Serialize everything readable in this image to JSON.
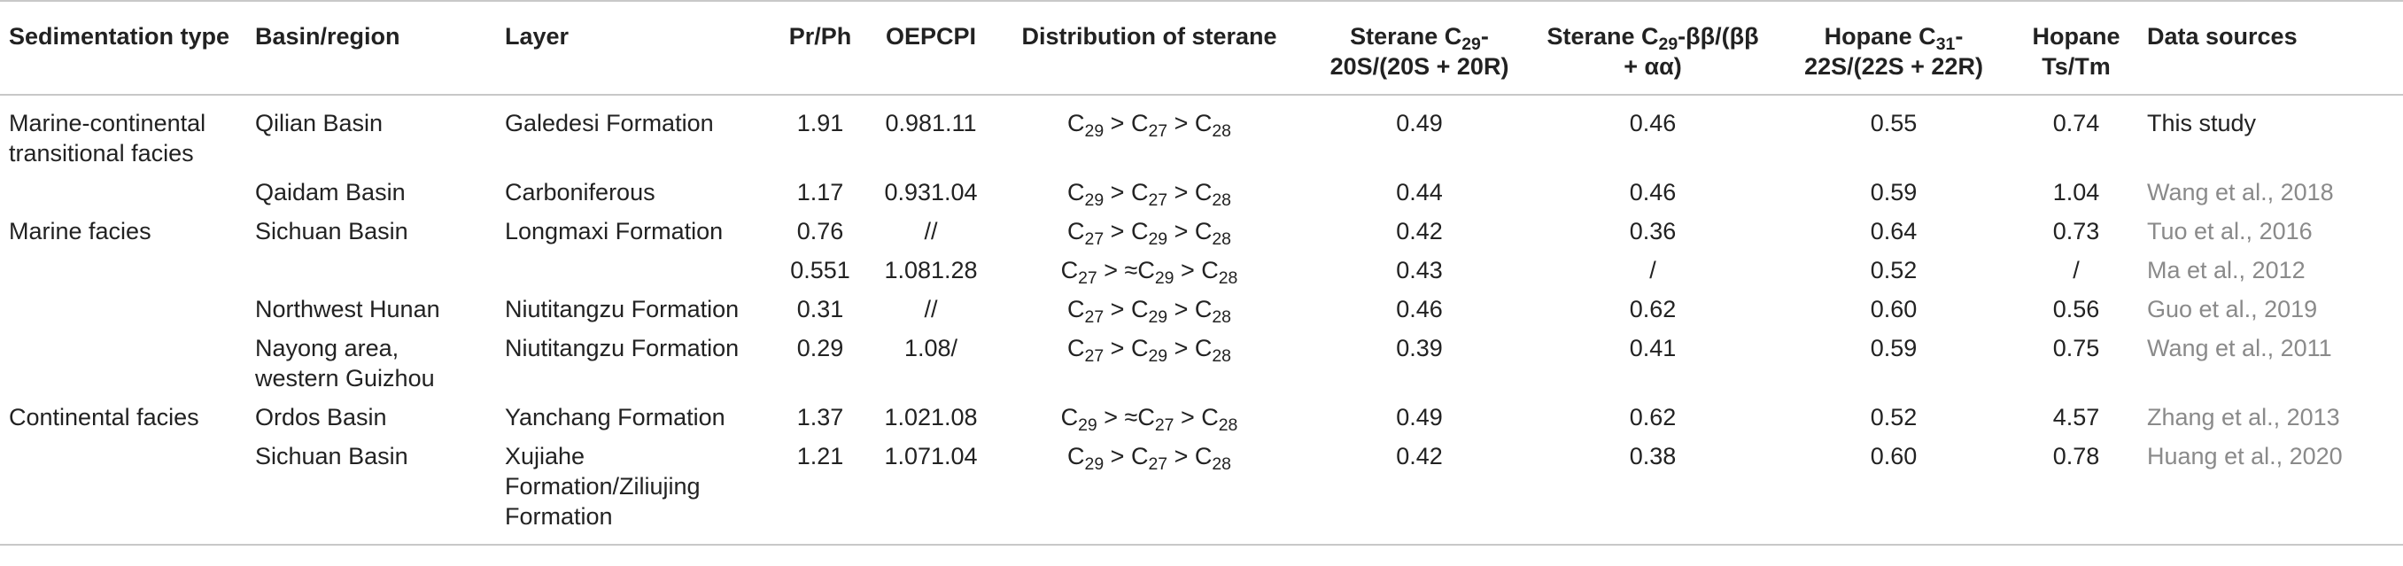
{
  "table": {
    "headers": {
      "sedimentation_type": "Sedimentation type",
      "basin_region": "Basin/region",
      "layer": "Layer",
      "pr_ph": "Pr/Ph",
      "oepcpi": "OEPCPI",
      "distribution": "Distribution of sterane",
      "sterane_20s": {
        "pre": "Sterane C",
        "sub": "29",
        "post": "-20S/(20S + 20R)"
      },
      "sterane_bb": {
        "pre": "Sterane C",
        "sub": "29",
        "post": "-ββ/(ββ + αα)"
      },
      "hopane_22s": {
        "pre": "Hopane C",
        "sub": "31",
        "post": "-22S/(22S + 22R)"
      },
      "hopane_ts": "Hopane Ts/Tm",
      "data_sources": "Data sources"
    },
    "rows": [
      {
        "sedimentation_type": "Marine-continental transitional facies",
        "basin_region": "Qilian Basin",
        "layer": "Galedesi Formation",
        "pr_ph": "1.91",
        "oepcpi": "0.981.11",
        "distribution": {
          "a": "C",
          "as": "29",
          "op1": " > ",
          "b": "C",
          "bs": "27",
          "op2": " > ",
          "c": "C",
          "cs": "28"
        },
        "sterane_20s": "0.49",
        "sterane_bb": "0.46",
        "hopane_22s": "0.55",
        "hopane_ts": "0.74",
        "data_source": "This study",
        "source_style": "dark"
      },
      {
        "sedimentation_type": "",
        "basin_region": "Qaidam Basin",
        "layer": "Carboniferous",
        "pr_ph": "1.17",
        "oepcpi": "0.931.04",
        "distribution": {
          "a": "C",
          "as": "29",
          "op1": " > ",
          "b": "C",
          "bs": "27",
          "op2": " > ",
          "c": "C",
          "cs": "28"
        },
        "sterane_20s": "0.44",
        "sterane_bb": "0.46",
        "hopane_22s": "0.59",
        "hopane_ts": "1.04",
        "data_source": "Wang et al., 2018",
        "source_style": "gray"
      },
      {
        "sedimentation_type": "Marine facies",
        "basin_region": "Sichuan Basin",
        "layer": "Longmaxi Formation",
        "pr_ph": "0.76",
        "oepcpi": "//",
        "distribution": {
          "a": "C",
          "as": "27",
          "op1": " > ",
          "b": "C",
          "bs": "29",
          "op2": " > ",
          "c": "C",
          "cs": "28"
        },
        "sterane_20s": "0.42",
        "sterane_bb": "0.36",
        "hopane_22s": "0.64",
        "hopane_ts": "0.73",
        "data_source": "Tuo et al., 2016",
        "source_style": "gray"
      },
      {
        "sedimentation_type": "",
        "basin_region": "",
        "layer": "",
        "pr_ph": "0.551",
        "oepcpi": "1.081.28",
        "distribution": {
          "a": "C",
          "as": "27",
          "op1": " > ≈",
          "b": "C",
          "bs": "29",
          "op2": " > ",
          "c": "C",
          "cs": "28"
        },
        "sterane_20s": "0.43",
        "sterane_bb": "/",
        "hopane_22s": "0.52",
        "hopane_ts": "/",
        "data_source": "Ma et al., 2012",
        "source_style": "gray"
      },
      {
        "sedimentation_type": "",
        "basin_region": "Northwest Hunan",
        "layer": "Niutitangzu Formation",
        "pr_ph": "0.31",
        "oepcpi": "//",
        "distribution": {
          "a": "C",
          "as": "27",
          "op1": " > ",
          "b": "C",
          "bs": "29",
          "op2": " > ",
          "c": "C",
          "cs": "28"
        },
        "sterane_20s": "0.46",
        "sterane_bb": "0.62",
        "hopane_22s": "0.60",
        "hopane_ts": "0.56",
        "data_source": "Guo et al., 2019",
        "source_style": "gray"
      },
      {
        "sedimentation_type": "",
        "basin_region": "Nayong area, western Guizhou",
        "layer": "Niutitangzu Formation",
        "pr_ph": "0.29",
        "oepcpi": "1.08/",
        "distribution": {
          "a": "C",
          "as": "27",
          "op1": " > ",
          "b": "C",
          "bs": "29",
          "op2": " > ",
          "c": "C",
          "cs": "28"
        },
        "sterane_20s": "0.39",
        "sterane_bb": "0.41",
        "hopane_22s": "0.59",
        "hopane_ts": "0.75",
        "data_source": "Wang et al., 2011",
        "source_style": "gray"
      },
      {
        "sedimentation_type": "Continental facies",
        "basin_region": "Ordos Basin",
        "layer": "Yanchang Formation",
        "pr_ph": "1.37",
        "oepcpi": "1.021.08",
        "distribution": {
          "a": "C",
          "as": "29",
          "op1": " > ≈",
          "b": "C",
          "bs": "27",
          "op2": " > ",
          "c": "C",
          "cs": "28"
        },
        "sterane_20s": "0.49",
        "sterane_bb": "0.62",
        "hopane_22s": "0.52",
        "hopane_ts": "4.57",
        "data_source": "Zhang et al., 2013",
        "source_style": "gray"
      },
      {
        "sedimentation_type": "",
        "basin_region": "Sichuan Basin",
        "layer": "Xujiahe Formation/Ziliujing Formation",
        "pr_ph": "1.21",
        "oepcpi": "1.071.04",
        "distribution": {
          "a": "C",
          "as": "29",
          "op1": " > ",
          "b": "C",
          "bs": "27",
          "op2": " > ",
          "c": "C",
          "cs": "28"
        },
        "sterane_20s": "0.42",
        "sterane_bb": "0.38",
        "hopane_22s": "0.60",
        "hopane_ts": "0.78",
        "data_source": "Huang et al., 2020",
        "source_style": "gray"
      }
    ]
  }
}
